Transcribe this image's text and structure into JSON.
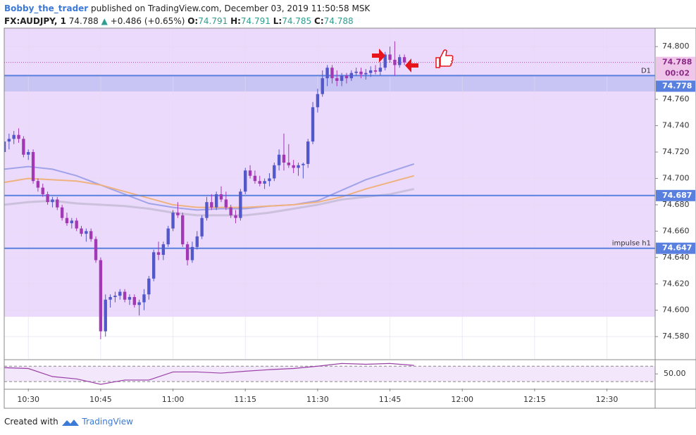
{
  "header": {
    "author": "Bobby_the_trader",
    "published": "published on TradingView.com, December 03, 2019 11:50:58 MSK",
    "symbol": "FX:AUDJPY, 1",
    "price": "74.788",
    "arrow": "▲",
    "change": "+0.486 (+0.65%)",
    "o_label": "O:",
    "o": "74.791",
    "h_label": "H:",
    "h": "74.791",
    "l_label": "L:",
    "l": "74.785",
    "c_label": "C:",
    "c": "74.788"
  },
  "footer": {
    "created": "Created with",
    "brand": "TradingView"
  },
  "chart_data": {
    "type": "candlestick",
    "x": [
      "10:25",
      "10:26",
      "10:27",
      "10:28",
      "10:29",
      "10:30",
      "10:31",
      "10:32",
      "10:33",
      "10:34",
      "10:35",
      "10:36",
      "10:37",
      "10:38",
      "10:39",
      "10:40",
      "10:41",
      "10:42",
      "10:43",
      "10:44",
      "10:45",
      "10:46",
      "10:47",
      "10:48",
      "10:49",
      "10:50",
      "10:51",
      "10:52",
      "10:53",
      "10:54",
      "10:55",
      "10:56",
      "10:57",
      "10:58",
      "10:59",
      "11:00",
      "11:01",
      "11:02",
      "11:03",
      "11:04",
      "11:05",
      "11:06",
      "11:07",
      "11:08",
      "11:09",
      "11:10",
      "11:11",
      "11:12",
      "11:13",
      "11:14",
      "11:15",
      "11:16",
      "11:17",
      "11:18",
      "11:19",
      "11:20",
      "11:21",
      "11:22",
      "11:23",
      "11:24",
      "11:25",
      "11:26",
      "11:27",
      "11:28",
      "11:29",
      "11:30",
      "11:31",
      "11:32",
      "11:33",
      "11:34",
      "11:35",
      "11:36",
      "11:37",
      "11:38",
      "11:39",
      "11:40",
      "11:41",
      "11:42",
      "11:43",
      "11:44",
      "11:45",
      "11:46",
      "11:47",
      "11:48"
    ],
    "open": [
      74.72,
      74.728,
      74.73,
      74.733,
      74.73,
      74.718,
      74.72,
      74.698,
      74.693,
      74.688,
      74.682,
      74.684,
      74.678,
      74.67,
      74.666,
      74.668,
      74.662,
      74.658,
      74.66,
      74.654,
      74.638,
      74.584,
      74.608,
      74.61,
      74.611,
      74.614,
      74.608,
      74.61,
      74.604,
      74.606,
      74.612,
      74.624,
      74.644,
      74.642,
      74.65,
      74.662,
      74.674,
      74.672,
      74.65,
      74.638,
      74.648,
      74.656,
      74.67,
      74.682,
      74.678,
      74.688,
      74.684,
      74.678,
      74.672,
      74.67,
      74.69,
      74.706,
      74.702,
      74.698,
      74.696,
      74.698,
      74.7,
      74.71,
      74.718,
      74.712,
      74.71,
      74.708,
      74.71,
      74.711,
      74.728,
      74.754,
      74.764,
      74.776,
      74.784,
      74.776,
      74.774,
      74.778,
      74.776,
      74.78,
      74.781,
      74.779,
      74.78,
      74.782,
      74.781,
      74.784,
      74.794,
      74.79,
      74.786,
      74.792
    ],
    "high": [
      74.73,
      74.734,
      74.736,
      74.738,
      74.732,
      74.722,
      74.722,
      74.7,
      74.696,
      74.69,
      74.686,
      74.686,
      74.68,
      74.674,
      74.67,
      74.67,
      74.664,
      74.662,
      74.662,
      74.656,
      74.64,
      74.612,
      74.612,
      74.614,
      74.616,
      74.616,
      74.612,
      74.612,
      74.608,
      74.616,
      74.626,
      74.646,
      74.652,
      74.652,
      74.664,
      74.676,
      74.682,
      74.674,
      74.652,
      74.652,
      74.66,
      74.672,
      74.686,
      74.688,
      74.69,
      74.694,
      74.69,
      74.68,
      74.676,
      74.692,
      74.708,
      74.71,
      74.706,
      74.702,
      74.7,
      74.704,
      74.712,
      74.722,
      74.734,
      74.726,
      74.714,
      74.712,
      74.712,
      74.73,
      74.758,
      74.768,
      74.782,
      74.786,
      74.786,
      74.782,
      74.78,
      74.78,
      74.782,
      74.784,
      74.784,
      74.783,
      74.785,
      74.786,
      74.788,
      74.796,
      74.8,
      74.804,
      74.794,
      74.794
    ],
    "low": [
      74.718,
      74.722,
      74.726,
      74.727,
      74.716,
      74.714,
      74.696,
      74.69,
      74.686,
      74.68,
      74.678,
      74.676,
      74.668,
      74.664,
      74.662,
      74.66,
      74.656,
      74.652,
      74.652,
      74.636,
      74.578,
      74.58,
      74.602,
      74.606,
      74.608,
      74.606,
      74.604,
      74.602,
      74.596,
      74.6,
      74.608,
      74.622,
      74.638,
      74.638,
      74.648,
      74.66,
      74.67,
      74.648,
      74.634,
      74.636,
      74.646,
      74.654,
      74.668,
      74.676,
      74.676,
      74.682,
      74.676,
      74.67,
      74.666,
      74.668,
      74.688,
      74.7,
      74.696,
      74.694,
      74.692,
      74.694,
      74.698,
      74.706,
      74.706,
      74.708,
      74.704,
      74.702,
      74.7,
      74.708,
      74.726,
      74.75,
      74.762,
      74.77,
      74.772,
      74.77,
      74.77,
      74.772,
      74.774,
      74.778,
      74.776,
      74.775,
      74.777,
      74.779,
      74.778,
      74.782,
      74.788,
      74.778,
      74.784,
      74.786
    ],
    "close": [
      74.728,
      74.73,
      74.733,
      74.73,
      74.718,
      74.72,
      74.698,
      74.693,
      74.688,
      74.682,
      74.684,
      74.678,
      74.67,
      74.666,
      74.668,
      74.662,
      74.658,
      74.66,
      74.654,
      74.638,
      74.584,
      74.608,
      74.61,
      74.611,
      74.614,
      74.608,
      74.61,
      74.604,
      74.606,
      74.612,
      74.624,
      74.644,
      74.642,
      74.65,
      74.662,
      74.674,
      74.672,
      74.65,
      74.638,
      74.648,
      74.656,
      74.67,
      74.682,
      74.678,
      74.688,
      74.684,
      74.678,
      74.672,
      74.67,
      74.69,
      74.706,
      74.702,
      74.698,
      74.696,
      74.698,
      74.7,
      74.71,
      74.718,
      74.712,
      74.71,
      74.708,
      74.71,
      74.711,
      74.728,
      74.754,
      74.764,
      74.776,
      74.784,
      74.776,
      74.774,
      74.778,
      74.776,
      74.78,
      74.781,
      74.779,
      74.78,
      74.782,
      74.781,
      74.784,
      74.794,
      74.79,
      74.786,
      74.792,
      74.788
    ],
    "up_color": "#5257c9",
    "down_color": "#a238b3",
    "ylim": [
      74.563,
      74.814
    ],
    "yticks": [
      {
        "value": 74.58,
        "label": "74.580"
      },
      {
        "value": 74.6,
        "label": "74.600"
      },
      {
        "value": 74.62,
        "label": "74.620"
      },
      {
        "value": 74.64,
        "label": "74.640"
      },
      {
        "value": 74.66,
        "label": "74.660"
      },
      {
        "value": 74.68,
        "label": "74.680"
      },
      {
        "value": 74.7,
        "label": "74.700"
      },
      {
        "value": 74.72,
        "label": "74.720"
      },
      {
        "value": 74.74,
        "label": "74.740"
      },
      {
        "value": 74.76,
        "label": "74.760"
      },
      {
        "value": 74.8,
        "label": "74.800"
      }
    ],
    "xlim": [
      "10:25",
      "12:40"
    ],
    "xticks": [
      "10:30",
      "10:45",
      "11:00",
      "11:15",
      "11:30",
      "11:45",
      "12:00",
      "12:15",
      "12:30"
    ],
    "grid": true,
    "zone_bottom": 74.595,
    "zone_color": "#ecdafc",
    "d1_zone": [
      74.766,
      74.778
    ],
    "d1_zone_color": "#c8c4f4",
    "levels": [
      {
        "value": 74.778,
        "label": "74.778",
        "name": "D1"
      },
      {
        "value": 74.687,
        "label": "74.687"
      },
      {
        "value": 74.647,
        "label": "74.647",
        "name": "impulse h1"
      }
    ],
    "level_color": "#5a80df",
    "last": {
      "value": 74.788,
      "label": "74.788",
      "countdown": "00:02"
    },
    "moving_averages": {
      "x": [
        "10:25",
        "10:30",
        "10:35",
        "10:40",
        "10:45",
        "10:50",
        "10:55",
        "11:00",
        "11:05",
        "11:10",
        "11:15",
        "11:20",
        "11:25",
        "11:30",
        "11:35",
        "11:40",
        "11:45",
        "11:50"
      ],
      "series": [
        {
          "color": "#a0a3ea",
          "values": [
            74.707,
            74.709,
            74.707,
            74.702,
            74.695,
            74.688,
            74.681,
            74.678,
            74.676,
            74.677,
            74.677,
            74.679,
            74.68,
            74.683,
            74.691,
            74.699,
            74.705,
            74.711
          ]
        },
        {
          "color": "#efb27f",
          "values": [
            74.697,
            74.7,
            74.699,
            74.698,
            74.695,
            74.69,
            74.685,
            74.68,
            74.678,
            74.678,
            74.678,
            74.679,
            74.68,
            74.682,
            74.686,
            74.692,
            74.697,
            74.702
          ]
        },
        {
          "color": "#cbc1dc",
          "values": [
            74.68,
            74.682,
            74.683,
            74.681,
            74.68,
            74.679,
            74.677,
            74.674,
            74.672,
            74.672,
            74.672,
            74.674,
            74.677,
            74.68,
            74.684,
            74.686,
            74.688,
            74.692
          ]
        }
      ]
    },
    "oscillator": {
      "ylim": [
        12,
        85
      ],
      "yticks": [
        {
          "value": 50,
          "label": "50.00"
        }
      ],
      "bands": [
        70,
        30
      ],
      "color": "#9a3fa6",
      "x": [
        "10:25",
        "10:30",
        "10:35",
        "10:40",
        "10:45",
        "10:50",
        "10:55",
        "11:00",
        "11:05",
        "11:10",
        "11:15",
        "11:20",
        "11:25",
        "11:30",
        "11:35",
        "11:40",
        "11:45",
        "11:50"
      ],
      "values": [
        66,
        64,
        43,
        37,
        23,
        34,
        34,
        55,
        55,
        52,
        57,
        61,
        64,
        70,
        77,
        75,
        77,
        72
      ]
    }
  }
}
